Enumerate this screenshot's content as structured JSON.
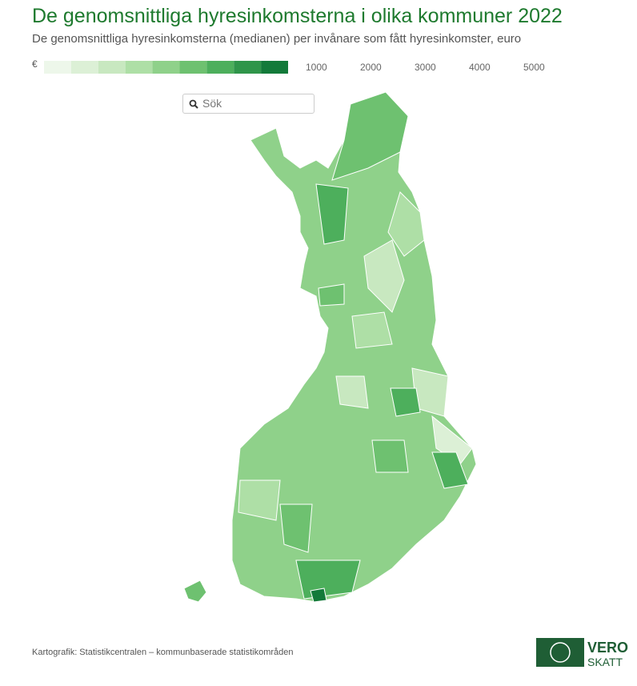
{
  "header": {
    "title": "De genomsnittliga hyresinkomsterna i olika kommuner 2022",
    "subtitle": "De genomsnittliga hyresinkomsterna (medianen) per invånare som fått hyresinkomster, euro"
  },
  "legend": {
    "unit": "€",
    "colors": [
      "#edf7ea",
      "#dcf0d6",
      "#c8e8c0",
      "#aedfa6",
      "#8fd18a",
      "#6ec170",
      "#4daf5c",
      "#2f954a",
      "#137a3a"
    ],
    "ticks": [
      1000,
      2000,
      3000,
      4000,
      5000
    ]
  },
  "search": {
    "placeholder": "Sök"
  },
  "footer": {
    "credit": "Kartografik: Statistikcentralen – kommunbaserade statistikområden",
    "logo_top": "VERO",
    "logo_bottom": "SKATT"
  }
}
